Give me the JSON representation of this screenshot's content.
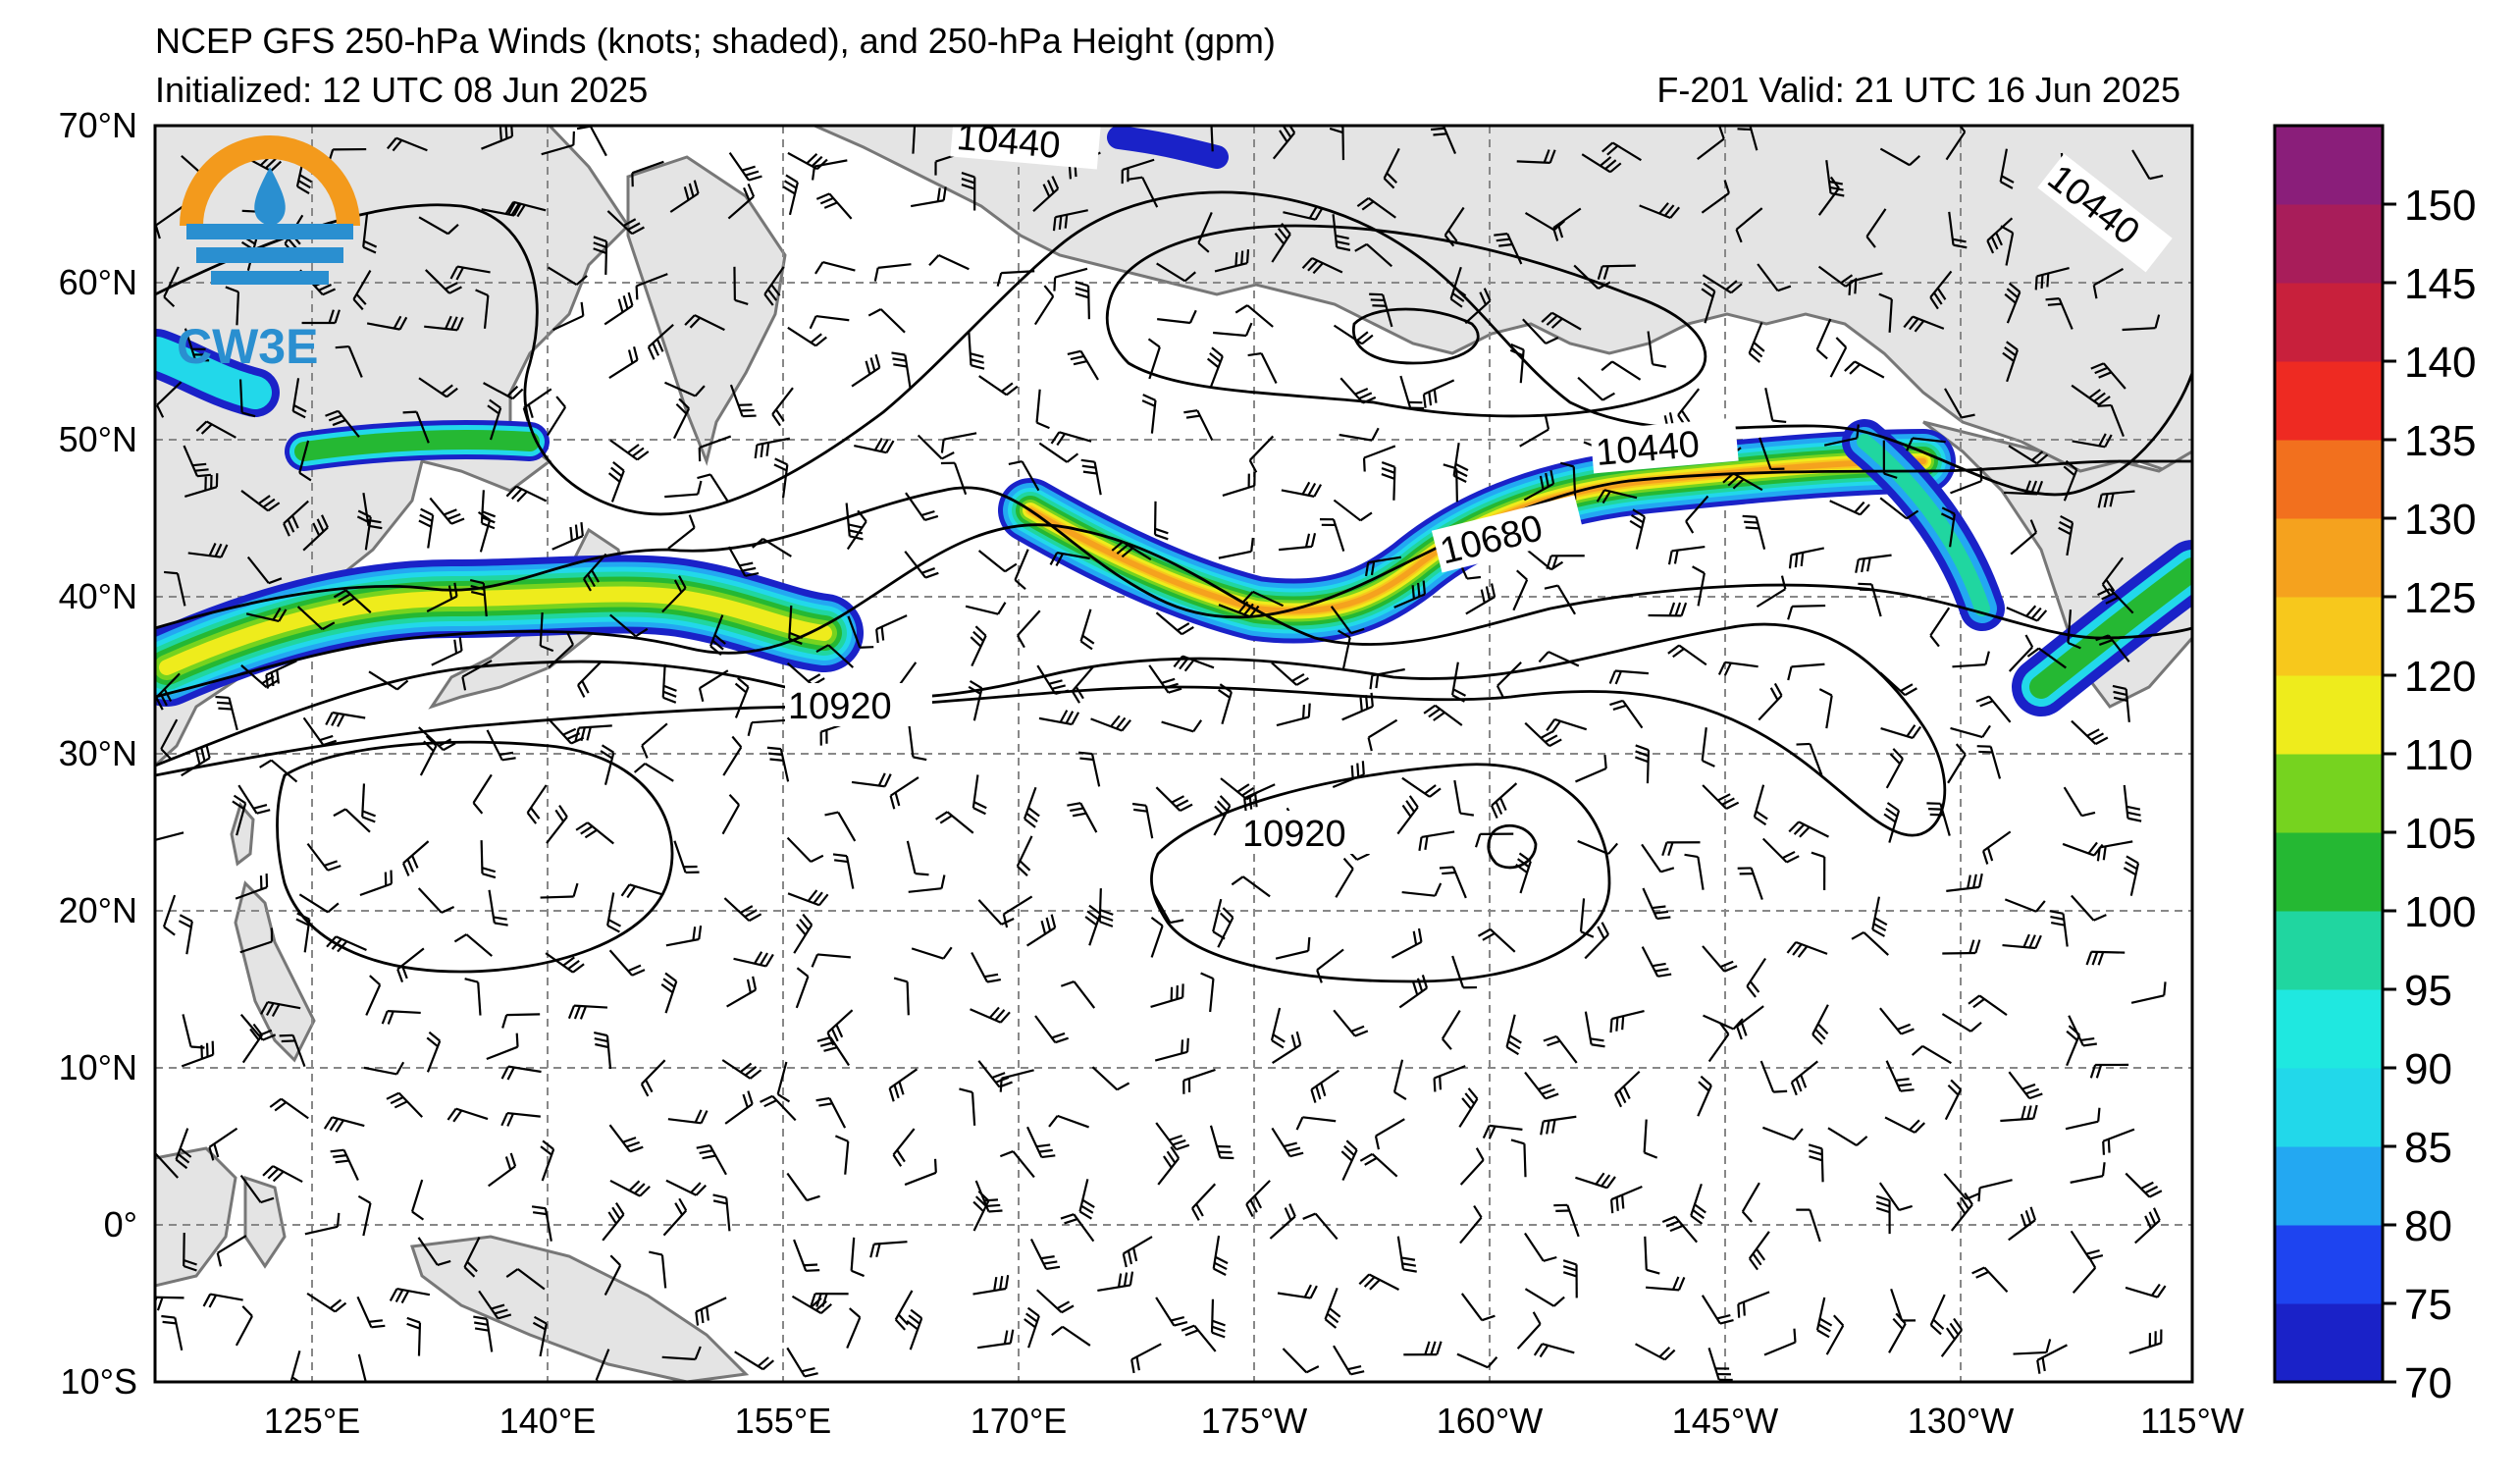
{
  "title": {
    "line1": "NCEP GFS 250-hPa Winds (knots; shaded), and 250-hPa Height (gpm)",
    "initialized": "Initialized: 12 UTC 08 Jun 2025",
    "valid": "F-201  Valid: 21 UTC 16 Jun 2025"
  },
  "logo": {
    "text": "CW3E"
  },
  "axes": {
    "lat_labels": [
      "70°N",
      "60°N",
      "50°N",
      "40°N",
      "30°N",
      "20°N",
      "10°N",
      "0°",
      "10°S"
    ],
    "lon_labels": [
      "125°E",
      "140°E",
      "155°E",
      "170°E",
      "175°W",
      "160°W",
      "145°W",
      "130°W",
      "115°W"
    ]
  },
  "colorbar": {
    "labels": [
      "70",
      "75",
      "80",
      "85",
      "90",
      "95",
      "100",
      "105",
      "110",
      "120",
      "125",
      "130",
      "135",
      "140",
      "145",
      "150"
    ],
    "colors": [
      "#1a22c8",
      "#1e44f0",
      "#23a8f2",
      "#22d8ea",
      "#1fe8e0",
      "#20d6a0",
      "#25b833",
      "#76d31f",
      "#eeec1c",
      "#f7c81c",
      "#f5a21e",
      "#f2701e",
      "#ee2a22",
      "#c8203c",
      "#a81d5a",
      "#8a1e7a"
    ]
  },
  "contours": {
    "labels": [
      "10440",
      "10440",
      "10440",
      "10680",
      "10920",
      "10920"
    ]
  },
  "colors": {
    "land": "#e4e4e4",
    "coast": "#777777",
    "grid": "#888888"
  }
}
